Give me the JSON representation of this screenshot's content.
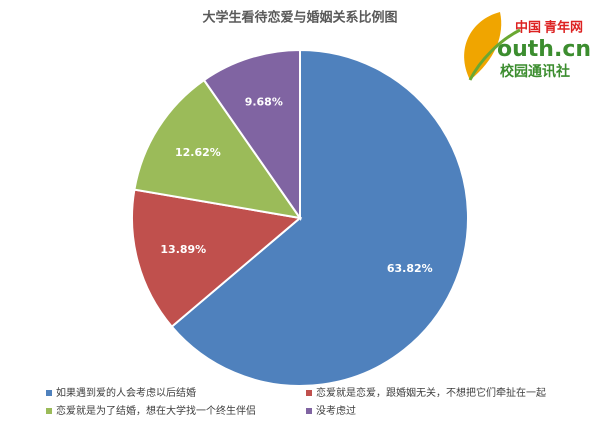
{
  "chart_data": {
    "type": "pie",
    "title": "大学生看待恋爱与婚姻关系比例图",
    "categories": [
      "如果遇到爱的人会考虑以后结婚",
      "恋爱就是恋爱，跟婚姻无关，不想把它们牵扯在一起",
      "恋爱就是为了结婚，想在大学找一个终生伴侣",
      "没考虑过"
    ],
    "values": [
      63.82,
      13.89,
      12.62,
      9.68
    ],
    "value_labels": [
      "63.82%",
      "13.89%",
      "12.62%",
      "9.68%"
    ],
    "colors": [
      "#4f81bd",
      "#c0504d",
      "#9bbb59",
      "#8064a2"
    ],
    "legend": "bottom"
  },
  "logo": {
    "brand": "中国",
    "name": "青年网",
    "site": "outh.cn",
    "sub": "校园通讯社"
  }
}
